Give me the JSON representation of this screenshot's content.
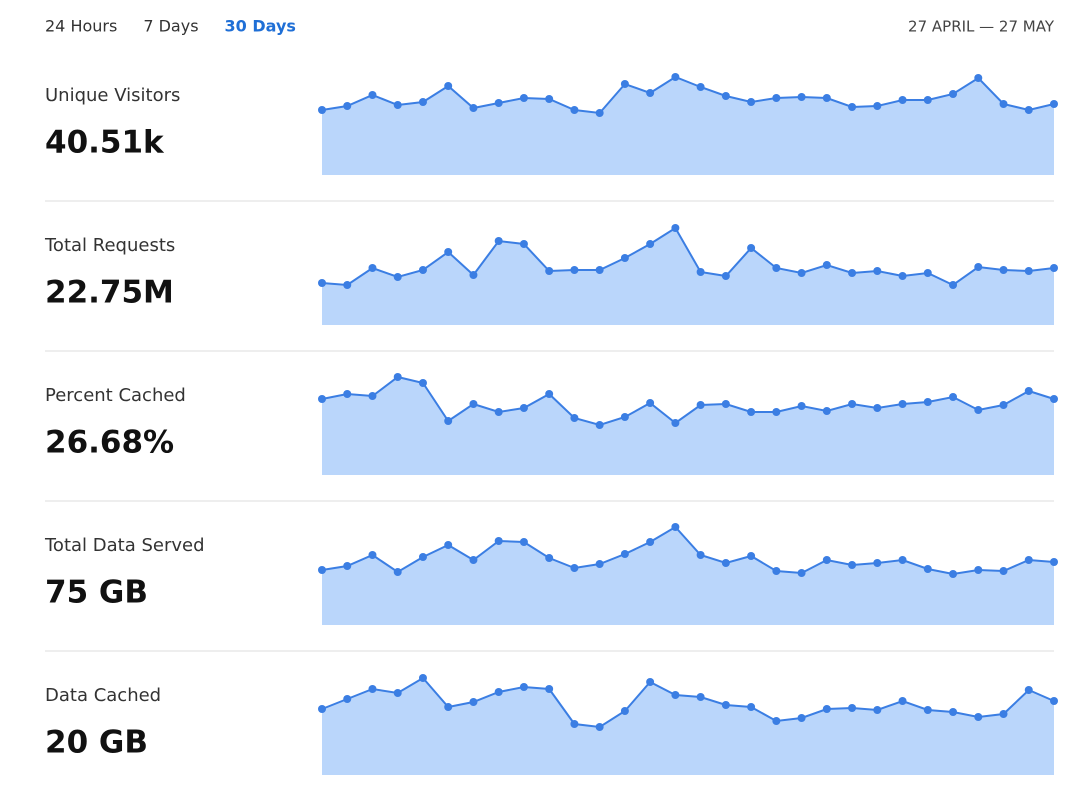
{
  "tabs": [
    "24 Hours",
    "7 Days",
    "30 Days"
  ],
  "active_tab": 2,
  "date_range": "27 APRIL — 27 MAY",
  "line_color": "#3b7ee3",
  "fill_color": "#bad6fb",
  "metrics": [
    {
      "label": "Unique Visitors",
      "value": "40.51k",
      "sparkline": {
        "type": "area",
        "ylim": [
          0,
          100
        ],
        "values": [
          65,
          69,
          80,
          70,
          73,
          89,
          67,
          72,
          77,
          76,
          65,
          62,
          91,
          82,
          98,
          88,
          79,
          73,
          77,
          78,
          77,
          68,
          69,
          75,
          75,
          81,
          97,
          71,
          65,
          71
        ]
      }
    },
    {
      "label": "Total Requests",
      "value": "22.75M",
      "sparkline": {
        "type": "area",
        "ylim": [
          0,
          100
        ],
        "values": [
          42,
          40,
          57,
          48,
          55,
          73,
          50,
          84,
          81,
          54,
          55,
          55,
          67,
          81,
          97,
          53,
          49,
          77,
          57,
          52,
          60,
          52,
          54,
          49,
          52,
          40,
          58,
          55,
          54,
          57
        ]
      }
    },
    {
      "label": "Percent Cached",
      "value": "26.68%",
      "sparkline": {
        "type": "area",
        "ylim": [
          0,
          100
        ],
        "values": [
          76,
          81,
          79,
          98,
          92,
          54,
          71,
          63,
          67,
          81,
          57,
          50,
          58,
          72,
          52,
          70,
          71,
          63,
          63,
          69,
          64,
          71,
          67,
          71,
          73,
          78,
          65,
          70,
          84,
          76
        ]
      }
    },
    {
      "label": "Total Data Served",
      "value": "75 GB",
      "sparkline": {
        "type": "area",
        "ylim": [
          0,
          100
        ],
        "values": [
          55,
          59,
          70,
          53,
          68,
          80,
          65,
          84,
          83,
          67,
          57,
          61,
          71,
          83,
          98,
          70,
          62,
          69,
          54,
          52,
          65,
          60,
          62,
          65,
          56,
          51,
          55,
          54,
          65,
          63
        ]
      }
    },
    {
      "label": "Data Cached",
      "value": "20 GB",
      "sparkline": {
        "type": "area",
        "ylim": [
          0,
          100
        ],
        "values": [
          66,
          76,
          86,
          82,
          97,
          68,
          73,
          83,
          88,
          86,
          51,
          48,
          64,
          93,
          80,
          78,
          70,
          68,
          54,
          57,
          66,
          67,
          65,
          74,
          65,
          63,
          58,
          61,
          85,
          74
        ]
      }
    }
  ]
}
